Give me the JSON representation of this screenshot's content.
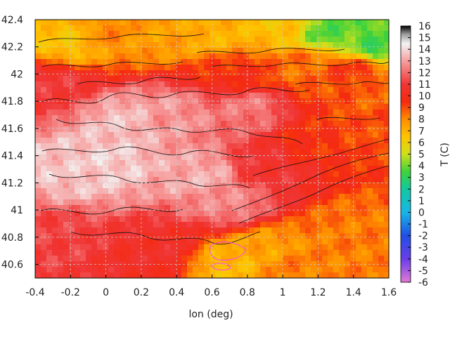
{
  "chart_data": {
    "type": "heatmap",
    "title": "",
    "xlabel": "lon (deg)",
    "ylabel": "",
    "xlim": [
      -0.4,
      1.6
    ],
    "ylim": [
      40.5,
      42.4
    ],
    "x_ticks": [
      "-0.4",
      "-0.2",
      "0",
      "0.2",
      "0.4",
      "0.6",
      "0.8",
      "1",
      "1.2",
      "1.4",
      "1.6"
    ],
    "y_ticks": [
      "40.6",
      "40.8",
      "41",
      "41.2",
      "41.4",
      "41.6",
      "41.8",
      "42",
      "42.2",
      "42.4"
    ],
    "colorbar": {
      "label": "T (C)",
      "min": -6,
      "max": 16,
      "ticks": [
        "16",
        "15",
        "14",
        "13",
        "12",
        "11",
        "10",
        "9",
        "8",
        "7",
        "6",
        "5",
        "4",
        "3",
        "2",
        "1",
        "0",
        "-1",
        "-2",
        "-3",
        "-4",
        "-5",
        "-6"
      ],
      "stops": [
        {
          "value": -6,
          "color": "#e07ad8"
        },
        {
          "value": -4,
          "color": "#6a3de8"
        },
        {
          "value": -2,
          "color": "#1f4fe6"
        },
        {
          "value": 0,
          "color": "#18b6e6"
        },
        {
          "value": 2,
          "color": "#12c9a0"
        },
        {
          "value": 3.5,
          "color": "#3fd23a"
        },
        {
          "value": 5,
          "color": "#cfe01a"
        },
        {
          "value": 6.5,
          "color": "#ffc400"
        },
        {
          "value": 8,
          "color": "#ff8c00"
        },
        {
          "value": 9.5,
          "color": "#f52a10"
        },
        {
          "value": 11,
          "color": "#f03535"
        },
        {
          "value": 13,
          "color": "#f7a0a0"
        },
        {
          "value": 14.5,
          "color": "#f4f4f4"
        },
        {
          "value": 15.3,
          "color": "#9a9a9a"
        },
        {
          "value": 16,
          "color": "#000000"
        }
      ]
    },
    "grid": true,
    "contours": true,
    "field_zones": [
      {
        "lon": 0.1,
        "lat": 41.65,
        "t": 13.5
      },
      {
        "lon": 0.0,
        "lat": 41.35,
        "t": 13.8
      },
      {
        "lon": -0.2,
        "lat": 41.3,
        "t": 13.6
      },
      {
        "lon": 0.35,
        "lat": 41.7,
        "t": 12.8
      },
      {
        "lon": 0.55,
        "lat": 41.25,
        "t": 13.2
      },
      {
        "lon": 0.7,
        "lat": 41.05,
        "t": 12.5
      },
      {
        "lon": 0.8,
        "lat": 41.75,
        "t": 12.2
      },
      {
        "lon": -0.3,
        "lat": 41.9,
        "t": 11.0
      },
      {
        "lon": -0.3,
        "lat": 40.8,
        "t": 11.2
      },
      {
        "lon": 0.3,
        "lat": 40.7,
        "t": 10.5
      },
      {
        "lon": 0.9,
        "lat": 41.3,
        "t": 10.8
      },
      {
        "lon": 1.2,
        "lat": 41.5,
        "t": 9.5
      },
      {
        "lon": 1.45,
        "lat": 41.6,
        "t": 9.0
      },
      {
        "lon": 1.4,
        "lat": 40.85,
        "t": 8.3
      },
      {
        "lon": 1.05,
        "lat": 40.6,
        "t": 8.2
      },
      {
        "lon": 1.5,
        "lat": 40.55,
        "t": 8.2
      },
      {
        "lon": 0.9,
        "lat": 40.7,
        "t": 7.4
      },
      {
        "lon": 0.7,
        "lat": 40.6,
        "t": 6.8
      },
      {
        "lon": 0.75,
        "lat": 42.0,
        "t": 9.5
      },
      {
        "lon": 1.1,
        "lat": 42.05,
        "t": 8.5
      },
      {
        "lon": 1.4,
        "lat": 42.0,
        "t": 9.3
      },
      {
        "lon": 0.0,
        "lat": 42.3,
        "t": 8.0
      },
      {
        "lon": -0.2,
        "lat": 42.25,
        "t": 6.5
      },
      {
        "lon": 0.3,
        "lat": 42.3,
        "t": 7.5
      },
      {
        "lon": 0.65,
        "lat": 42.3,
        "t": 7.0
      },
      {
        "lon": 1.25,
        "lat": 42.32,
        "t": 3.8
      },
      {
        "lon": 1.55,
        "lat": 42.22,
        "t": 3.5
      },
      {
        "lon": 1.0,
        "lat": 42.35,
        "t": 6.5
      },
      {
        "lon": 1.55,
        "lat": 41.9,
        "t": 8.6
      }
    ]
  }
}
